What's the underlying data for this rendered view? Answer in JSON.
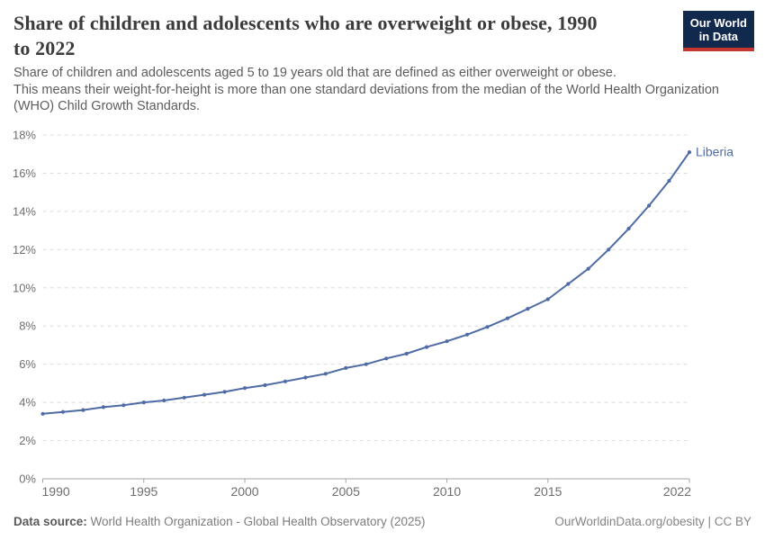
{
  "header": {
    "title_line1": "Share of children and adolescents who are overweight or obese, 1990",
    "title_line2": "to 2022",
    "subtitle_line1": "Share of children and adolescents aged 5 to 19 years old that are defined as either overweight or obese.",
    "subtitle_line2": "This means their weight-for-height is more than one standard deviations from the median of the World Health Organization (WHO) Child Growth Standards.",
    "logo": {
      "line1": "Our World",
      "line2": "in Data",
      "background_color": "#12294e",
      "accent_color": "#c4362e"
    }
  },
  "chart_data": {
    "type": "line",
    "title": "Share of children and adolescents who are overweight or obese, 1990 to 2022",
    "xlabel": "",
    "ylabel": "",
    "x": [
      1990,
      1991,
      1992,
      1993,
      1994,
      1995,
      1996,
      1997,
      1998,
      1999,
      2000,
      2001,
      2002,
      2003,
      2004,
      2005,
      2006,
      2007,
      2008,
      2009,
      2010,
      2011,
      2012,
      2013,
      2014,
      2015,
      2016,
      2017,
      2018,
      2019,
      2020,
      2021,
      2022
    ],
    "series": [
      {
        "name": "Liberia",
        "color": "#4e6ba5",
        "values": [
          3.4,
          3.5,
          3.6,
          3.75,
          3.85,
          4.0,
          4.1,
          4.25,
          4.4,
          4.55,
          4.75,
          4.9,
          5.1,
          5.3,
          5.5,
          5.8,
          6.0,
          6.3,
          6.55,
          6.9,
          7.2,
          7.55,
          7.95,
          8.4,
          8.9,
          9.4,
          10.2,
          11.0,
          12.0,
          13.1,
          14.3,
          15.6,
          17.1
        ]
      }
    ],
    "xticks": [
      1990,
      1995,
      2000,
      2005,
      2010,
      2015,
      2022
    ],
    "yticks": [
      0,
      2,
      4,
      6,
      8,
      10,
      12,
      14,
      16,
      18
    ],
    "ytick_suffix": "%",
    "xlim": [
      1990,
      2022
    ],
    "ylim": [
      0,
      18
    ],
    "grid": "horizontal-dashed",
    "legend_position": "end-of-line label",
    "colors": {
      "gridline": "#dcdcdc",
      "axis_line": "#a5a5a5",
      "tick_label": "#6e6e6e"
    }
  },
  "footer": {
    "datasource_label": "Data source:",
    "datasource_value": "World Health Organization - Global Health Observatory (2025)",
    "license_text": "OurWorldinData.org/obesity | CC BY"
  }
}
